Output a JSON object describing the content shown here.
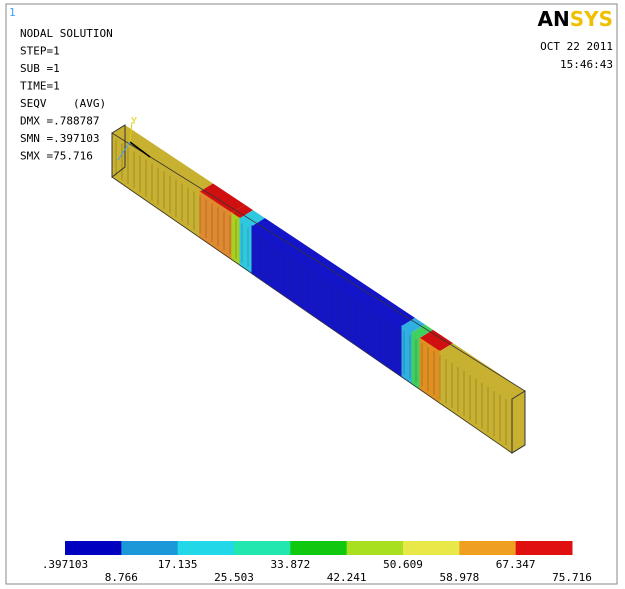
{
  "window": {
    "number": "1"
  },
  "header": {
    "lines": [
      "NODAL SOLUTION",
      "STEP=1",
      "SUB =1",
      "TIME=1",
      "SEQV    (AVG)",
      "DMX =.788787",
      "SMN =.397103",
      "SMX =75.716"
    ]
  },
  "logo": {
    "parts": [
      "AN",
      "SYS"
    ],
    "colors": [
      "#000000",
      "#f0c000"
    ]
  },
  "stamp": {
    "date": "OCT 22 2011",
    "time": "15:46:43"
  },
  "triad": {
    "y_label": "Y"
  },
  "legend": {
    "colors": [
      "#0000c0",
      "#1a98d8",
      "#22d8e8",
      "#22e8b0",
      "#10c810",
      "#a8e020",
      "#e8e848",
      "#f0a020",
      "#e01010"
    ],
    "labels": [
      ".397103",
      "8.766",
      "17.135",
      "25.503",
      "33.872",
      "42.241",
      "50.609",
      "58.978",
      "67.347",
      "75.716"
    ]
  }
}
